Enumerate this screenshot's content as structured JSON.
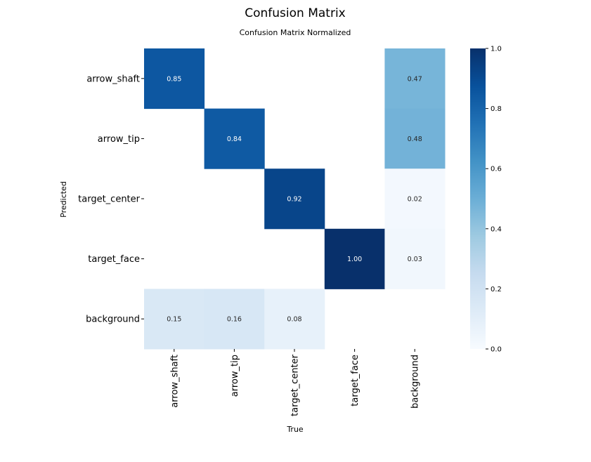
{
  "chart_data": {
    "type": "heatmap",
    "title": "Confusion Matrix",
    "subtitle": "Confusion Matrix Normalized",
    "xlabel": "True",
    "ylabel": "Predicted",
    "x_categories": [
      "arrow_shaft",
      "arrow_tip",
      "target_center",
      "target_face",
      "background"
    ],
    "y_categories": [
      "arrow_shaft",
      "arrow_tip",
      "target_center",
      "target_face",
      "background"
    ],
    "values": [
      [
        0.85,
        null,
        null,
        null,
        0.47
      ],
      [
        null,
        0.84,
        null,
        null,
        0.48
      ],
      [
        null,
        null,
        0.92,
        null,
        0.02
      ],
      [
        null,
        null,
        null,
        1.0,
        0.03
      ],
      [
        0.15,
        0.16,
        0.08,
        null,
        null
      ]
    ],
    "cell_labels": [
      [
        "0.85",
        "",
        "",
        "",
        "0.47"
      ],
      [
        "",
        "0.84",
        "",
        "",
        "0.48"
      ],
      [
        "",
        "",
        "0.92",
        "",
        "0.02"
      ],
      [
        "",
        "",
        "",
        "1.00",
        "0.03"
      ],
      [
        "0.15",
        "0.16",
        "0.08",
        "",
        ""
      ]
    ],
    "colorbar": {
      "range": [
        0.0,
        1.0
      ],
      "ticks": [
        0.0,
        0.2,
        0.4,
        0.6,
        0.8,
        1.0
      ],
      "tick_labels": [
        "0.0",
        "0.2",
        "0.4",
        "0.6",
        "0.8",
        "1.0"
      ],
      "colormap": "Blues"
    }
  }
}
